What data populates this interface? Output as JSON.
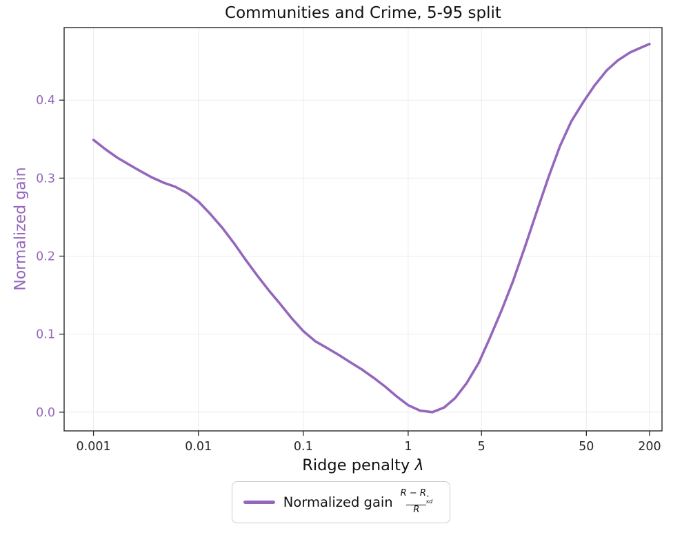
{
  "figure": {
    "title": "Communities and Crime, 5-95 split",
    "xlabel_text": "Ridge penalty ",
    "xlabel_symbol": "λ",
    "ylabel": "Normalized gain"
  },
  "legend": {
    "prefix": "Normalized gain",
    "frac_numerator_main": "R − R",
    "frac_numerator_sup": "⋆",
    "frac_numerator_sub": "sd",
    "frac_denominator": "R"
  },
  "colors": {
    "line": "#9467bd",
    "ylabel": "#9467bd",
    "ytick_label": "#9467bd",
    "xtick_label": "#262626",
    "grid": "#ebebeb",
    "axis": "#262626"
  },
  "chart_data": {
    "type": "line",
    "title": "Communities and Crime, 5-95 split",
    "xlabel": "Ridge penalty λ",
    "ylabel": "Normalized gain",
    "x_scale": "log",
    "grid": true,
    "legend_position": "below",
    "x_ticks": [
      0.001,
      0.01,
      0.1,
      1,
      5,
      50,
      200
    ],
    "x_tick_labels": [
      "0.001",
      "0.01",
      "0.1",
      "1",
      "5",
      "50",
      "200"
    ],
    "y_ticks": [
      0.0,
      0.1,
      0.2,
      0.3,
      0.4
    ],
    "y_tick_labels": [
      "0.0",
      "0.1",
      "0.2",
      "0.3",
      "0.4"
    ],
    "x_range_log10": [
      -3.28,
      2.42
    ],
    "y_range": [
      -0.024,
      0.493
    ],
    "series": [
      {
        "name": "Normalized gain (R − R⋆_sd)/R",
        "color": "#9467bd",
        "x": [
          0.001,
          0.0013,
          0.0017,
          0.0022,
          0.0028,
          0.0036,
          0.0047,
          0.006,
          0.0078,
          0.01,
          0.013,
          0.017,
          0.022,
          0.028,
          0.036,
          0.047,
          0.06,
          0.078,
          0.1,
          0.13,
          0.17,
          0.22,
          0.28,
          0.36,
          0.47,
          0.6,
          0.78,
          1.0,
          1.3,
          1.7,
          2.2,
          2.8,
          3.6,
          4.7,
          6.0,
          7.8,
          10,
          13,
          17,
          22,
          28,
          36,
          47,
          60,
          78,
          100,
          130,
          170,
          200
        ],
        "y": [
          0.349,
          0.337,
          0.326,
          0.317,
          0.309,
          0.301,
          0.294,
          0.289,
          0.281,
          0.27,
          0.254,
          0.236,
          0.216,
          0.196,
          0.176,
          0.156,
          0.139,
          0.12,
          0.104,
          0.091,
          0.082,
          0.073,
          0.064,
          0.055,
          0.044,
          0.033,
          0.02,
          0.009,
          0.002,
          0.0,
          0.006,
          0.018,
          0.037,
          0.063,
          0.095,
          0.131,
          0.168,
          0.212,
          0.259,
          0.303,
          0.341,
          0.373,
          0.398,
          0.419,
          0.438,
          0.451,
          0.461,
          0.468,
          0.472
        ]
      }
    ]
  }
}
